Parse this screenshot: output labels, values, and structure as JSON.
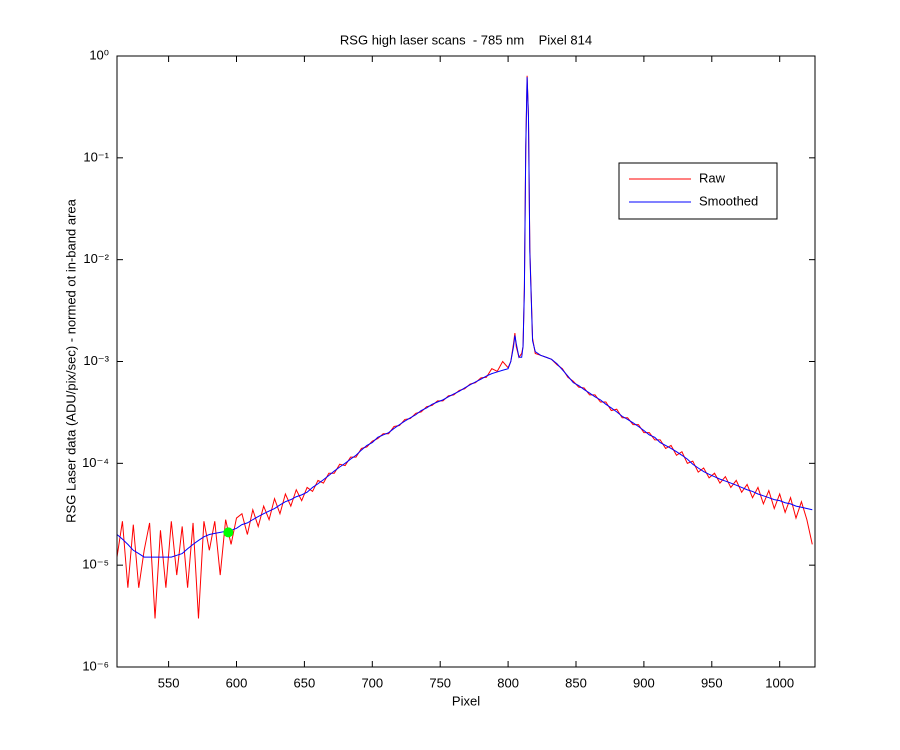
{
  "chart_data": {
    "type": "line",
    "title": "RSG high laser scans  - 785 nm    Pixel 814",
    "xlabel": "Pixel",
    "ylabel": "RSG Laser data (ADU/pix/sec) - normed ot in-band area",
    "log_y": true,
    "xlim": [
      512,
      1026
    ],
    "ylim": [
      1e-06,
      1
    ],
    "xticks": [
      550,
      600,
      650,
      700,
      750,
      800,
      850,
      900,
      950,
      1000
    ],
    "yticks": [
      {
        "value": 1e-06,
        "label": "10⁻⁶"
      },
      {
        "value": 1e-05,
        "label": "10⁻⁵"
      },
      {
        "value": 0.0001,
        "label": "10⁻⁴"
      },
      {
        "value": 0.001,
        "label": "10⁻³"
      },
      {
        "value": 0.01,
        "label": "10⁻²"
      },
      {
        "value": 0.1,
        "label": "10⁻¹"
      },
      {
        "value": 1,
        "label": "10⁰"
      }
    ],
    "legend": "northeast",
    "x": [
      512,
      516,
      520,
      524,
      528,
      532,
      536,
      540,
      544,
      548,
      552,
      556,
      560,
      564,
      568,
      572,
      576,
      580,
      584,
      588,
      592,
      596,
      600,
      604,
      608,
      612,
      616,
      620,
      624,
      628,
      632,
      636,
      640,
      644,
      648,
      652,
      656,
      660,
      664,
      668,
      672,
      676,
      680,
      684,
      688,
      692,
      696,
      700,
      704,
      708,
      712,
      716,
      720,
      724,
      728,
      732,
      736,
      740,
      744,
      748,
      752,
      756,
      760,
      764,
      768,
      772,
      776,
      780,
      784,
      788,
      792,
      796,
      800,
      802,
      804,
      805,
      806,
      808,
      810,
      811,
      812,
      813,
      814,
      815,
      816,
      818,
      820,
      824,
      828,
      832,
      836,
      840,
      844,
      848,
      852,
      856,
      860,
      864,
      868,
      872,
      876,
      880,
      884,
      888,
      892,
      896,
      900,
      904,
      908,
      912,
      916,
      920,
      924,
      928,
      932,
      936,
      940,
      944,
      948,
      952,
      956,
      960,
      964,
      968,
      972,
      976,
      980,
      984,
      988,
      992,
      996,
      1000,
      1004,
      1008,
      1012,
      1016,
      1020,
      1024
    ],
    "series": [
      {
        "name": "Raw",
        "color": "#ff0000",
        "values": [
          1.2e-05,
          2.7e-05,
          6e-06,
          2.5e-05,
          6e-06,
          1.4e-05,
          2.6e-05,
          3e-06,
          2.2e-05,
          6e-06,
          2.7e-05,
          8e-06,
          2.4e-05,
          6e-06,
          2.6e-05,
          3e-06,
          2.7e-05,
          1.4e-05,
          2.7e-05,
          8e-06,
          2.8e-05,
          1.6e-05,
          2.9e-05,
          3.2e-05,
          2e-05,
          3.5e-05,
          2.4e-05,
          3.8e-05,
          2.8e-05,
          4.5e-05,
          3.2e-05,
          5e-05,
          3.8e-05,
          5.5e-05,
          4.3e-05,
          5.8e-05,
          5.3e-05,
          6.8e-05,
          6.4e-05,
          8e-05,
          8e-05,
          9.8e-05,
          9.5e-05,
          0.000115,
          0.000115,
          0.00014,
          0.000145,
          0.000165,
          0.000175,
          0.000195,
          0.000195,
          0.00023,
          0.000235,
          0.00027,
          0.000275,
          0.00031,
          0.00032,
          0.00036,
          0.00037,
          0.00041,
          0.00041,
          0.00046,
          0.00047,
          0.00052,
          0.00054,
          0.0006,
          0.00062,
          0.00069,
          0.0007,
          0.00085,
          0.0008,
          0.001,
          0.00087,
          0.001,
          0.0015,
          0.0019,
          0.0014,
          0.0011,
          0.0012,
          0.0014,
          0.0055,
          0.13,
          0.64,
          0.26,
          0.013,
          0.0017,
          0.0012,
          0.00115,
          0.0011,
          0.00105,
          0.00093,
          0.00085,
          0.0007,
          0.00064,
          0.00056,
          0.00055,
          0.00047,
          0.00047,
          0.0004,
          0.0004,
          0.00033,
          0.00034,
          0.00028,
          0.00028,
          0.00024,
          0.00024,
          0.0002,
          0.0002,
          0.00017,
          0.00017,
          0.00014,
          0.00015,
          0.00012,
          0.00013,
          0.0001,
          0.000105,
          8.2e-05,
          9e-05,
          7.2e-05,
          8e-05,
          6.4e-05,
          7.4e-05,
          5.8e-05,
          6.8e-05,
          5.2e-05,
          6.2e-05,
          4.6e-05,
          5.8e-05,
          4e-05,
          5.4e-05,
          3.6e-05,
          5e-05,
          3.3e-05,
          4.6e-05,
          2.9e-05,
          4.2e-05,
          2.8e-05,
          1.6e-05
        ]
      },
      {
        "name": "Smoothed",
        "color": "#0000ff",
        "values": [
          2e-05,
          1.8e-05,
          1.6e-05,
          1.4e-05,
          1.3e-05,
          1.2e-05,
          1.2e-05,
          1.2e-05,
          1.2e-05,
          1.2e-05,
          1.2e-05,
          1.25e-05,
          1.3e-05,
          1.45e-05,
          1.6e-05,
          1.75e-05,
          1.9e-05,
          2e-05,
          2.05e-05,
          2.1e-05,
          2.15e-05,
          2.2e-05,
          2.3e-05,
          2.5e-05,
          2.6e-05,
          2.8e-05,
          3e-05,
          3.2e-05,
          3.4e-05,
          3.6e-05,
          3.9e-05,
          4.2e-05,
          4.4e-05,
          4.7e-05,
          4.9e-05,
          5.2e-05,
          5.8e-05,
          6.3e-05,
          6.9e-05,
          7.6e-05,
          8.4e-05,
          9.2e-05,
          0.0001,
          0.00011,
          0.00012,
          0.000135,
          0.00015,
          0.00016,
          0.00018,
          0.00019,
          0.0002,
          0.00022,
          0.00024,
          0.00026,
          0.00028,
          0.0003,
          0.00033,
          0.00035,
          0.00038,
          0.0004,
          0.00042,
          0.00045,
          0.00048,
          0.00051,
          0.00055,
          0.00059,
          0.00063,
          0.00067,
          0.00072,
          0.00076,
          0.00079,
          0.00082,
          0.00085,
          0.001,
          0.0014,
          0.0018,
          0.0015,
          0.0011,
          0.0011,
          0.0014,
          0.005,
          0.12,
          0.62,
          0.25,
          0.012,
          0.0016,
          0.00125,
          0.00115,
          0.0011,
          0.00105,
          0.00095,
          0.00083,
          0.00072,
          0.00062,
          0.00058,
          0.00053,
          0.00049,
          0.00045,
          0.00042,
          0.00038,
          0.00035,
          0.00032,
          0.00029,
          0.00027,
          0.00025,
          0.00023,
          0.00021,
          0.00019,
          0.00018,
          0.00016,
          0.00015,
          0.00014,
          0.00013,
          0.00012,
          0.00011,
          9.8e-05,
          9e-05,
          8.3e-05,
          7.8e-05,
          7.4e-05,
          7e-05,
          6.7e-05,
          6.4e-05,
          6.1e-05,
          5.8e-05,
          5.5e-05,
          5.3e-05,
          5e-05,
          4.8e-05,
          4.6e-05,
          4.4e-05,
          4.3e-05,
          4.1e-05,
          4e-05,
          3.8e-05,
          3.7e-05,
          3.6e-05,
          3.5e-05
        ]
      }
    ],
    "marker": {
      "x": 594,
      "y": 2.1e-05,
      "color": "#00ff00"
    }
  }
}
